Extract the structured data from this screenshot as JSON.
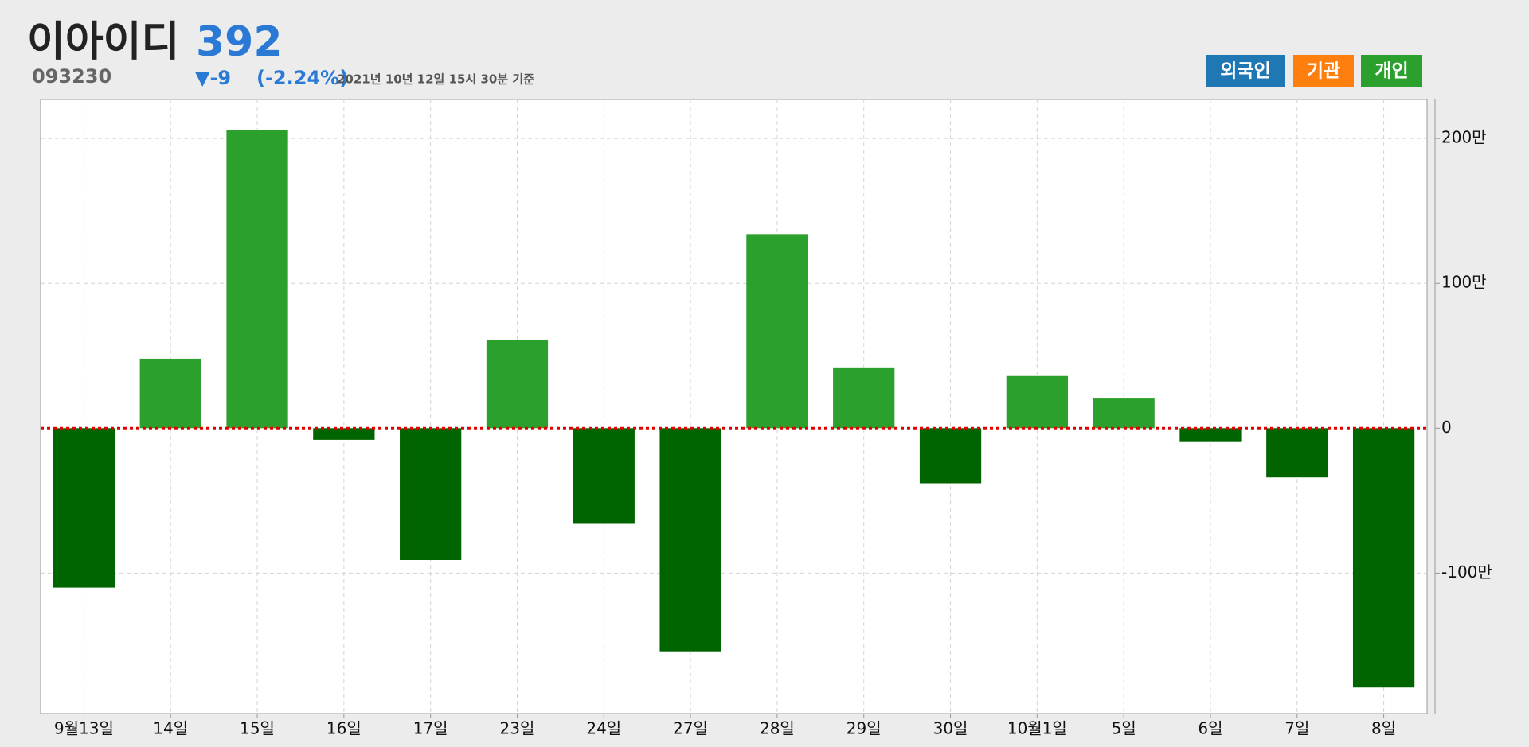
{
  "chart_data": {
    "type": "bar",
    "title": "이아이디",
    "code": "093230",
    "price": "392",
    "change": "▼-9",
    "change_percent": "(-2.24%)",
    "timestamp": "2021년 10년 12일 15시 30분 기준",
    "buttons": [
      {
        "label": "외국인",
        "color": "#1f77b4"
      },
      {
        "label": "기관",
        "color": "#ff7f0e"
      },
      {
        "label": "개인",
        "color": "#2ca02c"
      }
    ],
    "categories": [
      "9월13일",
      "14일",
      "15일",
      "16일",
      "17일",
      "23일",
      "24일",
      "27일",
      "28일",
      "29일",
      "30일",
      "10월1일",
      "5일",
      "6일",
      "7일",
      "8일"
    ],
    "values": [
      -1100000,
      480000,
      2060000,
      -80000,
      -910000,
      610000,
      -660000,
      -1540000,
      1340000,
      420000,
      -380000,
      360000,
      210000,
      -90000,
      -340000,
      -1790000
    ],
    "positive_color": "#2ca02c",
    "negative_color": "#006400",
    "zero_line_color": "#e00000",
    "ylim": [
      -1970000,
      2270000
    ],
    "yticks": [
      {
        "value": -1000000,
        "label": "-100만"
      },
      0,
      {
        "value": 1000000,
        "label": "100만"
      },
      {
        "value": 2000000,
        "label": "200만"
      }
    ],
    "grid": true,
    "y_axis_side": "right"
  }
}
